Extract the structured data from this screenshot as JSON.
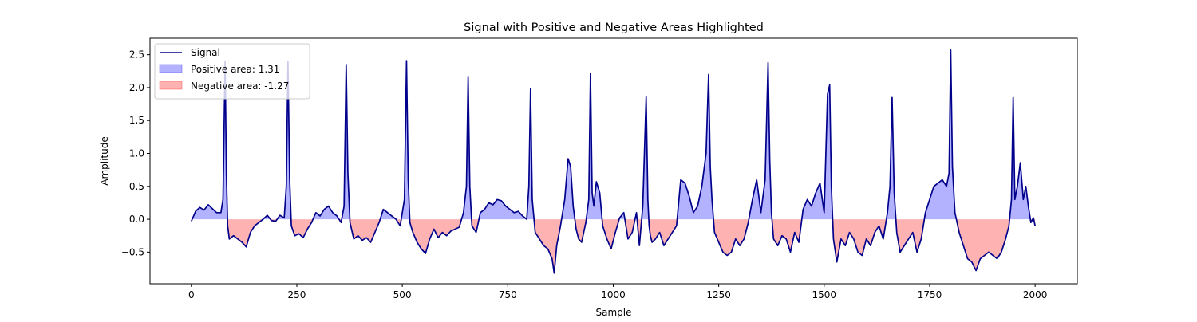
{
  "chart_data": {
    "type": "line",
    "title": "Signal with Positive and Negative Areas Highlighted",
    "xlabel": "Sample",
    "ylabel": "Amplitude",
    "xlim": [
      -98,
      2100
    ],
    "ylim": [
      -0.98,
      2.75
    ],
    "xticks": [
      0,
      250,
      500,
      750,
      1000,
      1250,
      1500,
      1750,
      2000
    ],
    "xtick_labels": [
      "0",
      "250",
      "500",
      "750",
      "1000",
      "1250",
      "1500",
      "1750",
      "2000"
    ],
    "yticks": [
      -0.5,
      0.0,
      0.5,
      1.0,
      1.5,
      2.0,
      2.5
    ],
    "ytick_labels": [
      "−0.5",
      "0.0",
      "0.5",
      "1.0",
      "1.5",
      "2.0",
      "2.5"
    ],
    "grid": false,
    "legend_position": "top-left",
    "series": [
      {
        "name": "Signal",
        "color": "#00008b",
        "style": "line"
      },
      {
        "name": "Positive area: 1.31",
        "color": "#0000ff",
        "style": "fill-above-zero",
        "alpha": 0.3
      },
      {
        "name": "Negative area: -1.27",
        "color": "#ff0000",
        "style": "fill-below-zero",
        "alpha": 0.3
      }
    ],
    "x": [
      0,
      10,
      20,
      30,
      40,
      50,
      60,
      70,
      75,
      80,
      83,
      86,
      90,
      100,
      110,
      120,
      130,
      140,
      150,
      160,
      170,
      180,
      190,
      200,
      210,
      220,
      225,
      229,
      233,
      237,
      245,
      255,
      265,
      275,
      285,
      295,
      305,
      315,
      325,
      335,
      345,
      355,
      362,
      367,
      371,
      376,
      385,
      395,
      405,
      415,
      425,
      435,
      445,
      455,
      465,
      475,
      485,
      495,
      505,
      510,
      514,
      518,
      525,
      535,
      545,
      555,
      565,
      575,
      585,
      595,
      605,
      615,
      625,
      635,
      645,
      652,
      656,
      660,
      665,
      675,
      685,
      695,
      705,
      715,
      725,
      735,
      745,
      755,
      765,
      775,
      785,
      795,
      800,
      804,
      808,
      815,
      825,
      835,
      845,
      855,
      860,
      866,
      875,
      885,
      893,
      899,
      905,
      912,
      918,
      925,
      935,
      942,
      946,
      950,
      954,
      960,
      968,
      975,
      985,
      995,
      1005,
      1015,
      1025,
      1035,
      1045,
      1055,
      1062,
      1070,
      1078,
      1082,
      1085,
      1088,
      1092,
      1100,
      1110,
      1120,
      1130,
      1140,
      1150,
      1160,
      1170,
      1180,
      1190,
      1200,
      1210,
      1220,
      1226,
      1230,
      1234,
      1240,
      1250,
      1260,
      1270,
      1280,
      1290,
      1300,
      1310,
      1320,
      1330,
      1340,
      1350,
      1360,
      1367,
      1371,
      1375,
      1380,
      1390,
      1400,
      1410,
      1420,
      1430,
      1440,
      1450,
      1460,
      1470,
      1480,
      1490,
      1500,
      1508,
      1513,
      1517,
      1522,
      1530,
      1540,
      1550,
      1560,
      1570,
      1580,
      1590,
      1600,
      1610,
      1620,
      1630,
      1640,
      1650,
      1656,
      1661,
      1666,
      1672,
      1680,
      1690,
      1700,
      1710,
      1720,
      1730,
      1740,
      1750,
      1760,
      1770,
      1780,
      1790,
      1796,
      1800,
      1804,
      1810,
      1820,
      1830,
      1840,
      1850,
      1860,
      1870,
      1880,
      1890,
      1900,
      1910,
      1920,
      1930,
      1938,
      1944,
      1948,
      1952,
      1958,
      1965,
      1972,
      1978,
      1984,
      1990,
      1996,
      2000
    ],
    "y": [
      -0.03,
      0.12,
      0.18,
      0.14,
      0.22,
      0.16,
      0.1,
      0.1,
      0.3,
      2.4,
      0.7,
      -0.1,
      -0.3,
      -0.25,
      -0.3,
      -0.35,
      -0.42,
      -0.2,
      -0.1,
      -0.05,
      0.0,
      0.06,
      -0.02,
      -0.03,
      0.06,
      0.02,
      0.5,
      2.4,
      0.6,
      -0.1,
      -0.25,
      -0.22,
      -0.28,
      -0.15,
      -0.05,
      0.1,
      0.05,
      0.15,
      0.2,
      0.1,
      0.05,
      -0.05,
      0.2,
      2.35,
      0.7,
      -0.05,
      -0.3,
      -0.25,
      -0.32,
      -0.28,
      -0.35,
      -0.2,
      -0.05,
      0.15,
      0.1,
      0.05,
      0.0,
      -0.1,
      0.3,
      2.41,
      0.6,
      -0.05,
      -0.2,
      -0.35,
      -0.45,
      -0.52,
      -0.3,
      -0.15,
      -0.28,
      -0.2,
      -0.25,
      -0.18,
      -0.15,
      -0.12,
      0.1,
      0.5,
      2.17,
      0.5,
      -0.1,
      -0.2,
      0.1,
      0.15,
      0.25,
      0.22,
      0.3,
      0.28,
      0.2,
      0.15,
      0.1,
      0.12,
      0.05,
      0.0,
      0.5,
      1.99,
      0.3,
      -0.2,
      -0.3,
      -0.4,
      -0.45,
      -0.6,
      -0.82,
      -0.4,
      -0.1,
      0.3,
      0.92,
      0.8,
      0.2,
      -0.15,
      -0.3,
      -0.35,
      -0.05,
      0.3,
      2.22,
      0.4,
      0.2,
      0.57,
      0.4,
      -0.1,
      -0.3,
      -0.45,
      -0.2,
      0.02,
      0.1,
      -0.3,
      -0.2,
      0.1,
      -0.4,
      0.2,
      1.86,
      0.3,
      -0.1,
      -0.25,
      -0.35,
      -0.3,
      -0.2,
      -0.4,
      -0.3,
      -0.2,
      -0.1,
      0.6,
      0.55,
      0.35,
      0.1,
      0.2,
      0.5,
      1.0,
      2.2,
      0.8,
      0.3,
      -0.2,
      -0.35,
      -0.5,
      -0.55,
      -0.5,
      -0.3,
      -0.4,
      -0.3,
      -0.05,
      0.3,
      0.6,
      0.1,
      0.6,
      2.38,
      0.9,
      0.1,
      -0.3,
      -0.4,
      -0.25,
      -0.3,
      -0.5,
      -0.2,
      -0.35,
      0.15,
      0.3,
      0.2,
      0.4,
      0.55,
      0.1,
      1.9,
      2.04,
      0.5,
      -0.3,
      -0.65,
      -0.3,
      -0.4,
      -0.2,
      -0.3,
      -0.5,
      -0.55,
      -0.3,
      -0.4,
      -0.2,
      -0.1,
      -0.3,
      0.1,
      0.5,
      1.85,
      0.4,
      -0.2,
      -0.5,
      -0.4,
      -0.3,
      -0.2,
      -0.5,
      -0.3,
      0.1,
      0.3,
      0.5,
      0.55,
      0.6,
      0.5,
      0.7,
      2.57,
      0.8,
      0.1,
      -0.2,
      -0.4,
      -0.6,
      -0.65,
      -0.78,
      -0.6,
      -0.55,
      -0.5,
      -0.55,
      -0.6,
      -0.5,
      -0.3,
      -0.1,
      0.3,
      1.85,
      0.3,
      0.5,
      0.86,
      0.3,
      0.5,
      0.2,
      -0.05,
      0.02,
      -0.1
    ]
  }
}
